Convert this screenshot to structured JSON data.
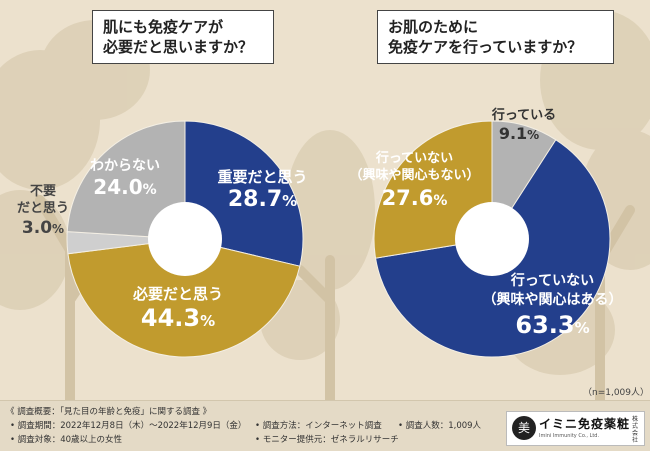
{
  "colors": {
    "blue": "#233f8c",
    "gold": "#c19b2e",
    "gray": "#b3b3b3",
    "background": "#ece1cd"
  },
  "chart_data": [
    {
      "type": "pie",
      "question": "肌にも免疫ケアが必要だと思いますか？",
      "question_lines": [
        "肌にも免疫ケアが",
        "必要だと思いますか？"
      ],
      "unit": "%",
      "slices": [
        {
          "label": "重要だと思う",
          "label_lines": [
            "重要だと思う"
          ],
          "value": 28.7,
          "color": "#233f8c"
        },
        {
          "label": "必要だと思う",
          "label_lines": [
            "必要だと思う"
          ],
          "value": 44.3,
          "color": "#c19b2e"
        },
        {
          "label": "不要だと思う",
          "label_lines": [
            "不要",
            "だと思う"
          ],
          "value": 3.0,
          "color": "#cfcfcf"
        },
        {
          "label": "わからない",
          "label_lines": [
            "わからない"
          ],
          "value": 24.0,
          "color": "#b3b3b3"
        }
      ]
    },
    {
      "type": "pie",
      "question": "お肌のために免疫ケアを行っていますか？",
      "question_lines": [
        "お肌のために",
        "免疫ケアを行っていますか？"
      ],
      "unit": "%",
      "slices": [
        {
          "label": "行っている",
          "label_lines": [
            "行っている"
          ],
          "value": 9.1,
          "color": "#b3b3b3"
        },
        {
          "label": "行っていない（興味や関心はある）",
          "label_lines": [
            "行っていない",
            "（興味や関心はある）"
          ],
          "value": 63.3,
          "color": "#233f8c"
        },
        {
          "label": "行っていない（興味や関心もない）",
          "label_lines": [
            "行っていない",
            "（興味や関心もない）"
          ],
          "value": 27.6,
          "color": "#c19b2e"
        }
      ]
    }
  ],
  "sample_size": "（n=1,009人）",
  "footer": {
    "overview": "《 調査概要：「見た目の年齢と免疫」に関する調査 》",
    "period": "• 調査期間：2022年12月8日（木）〜2022年12月9日（金）",
    "target": "• 調査対象：40歳以上の女性",
    "method": "• 調査方法：インターネット調査",
    "provider": "• モニター提供元：ゼネラルリサーチ",
    "count": "• 調査人数：1,009人"
  },
  "logo": {
    "mark": "美",
    "name": "イミニ免疫薬粧",
    "sub": "Imini Immunity Co., Ltd.",
    "tag": "株式会社"
  }
}
